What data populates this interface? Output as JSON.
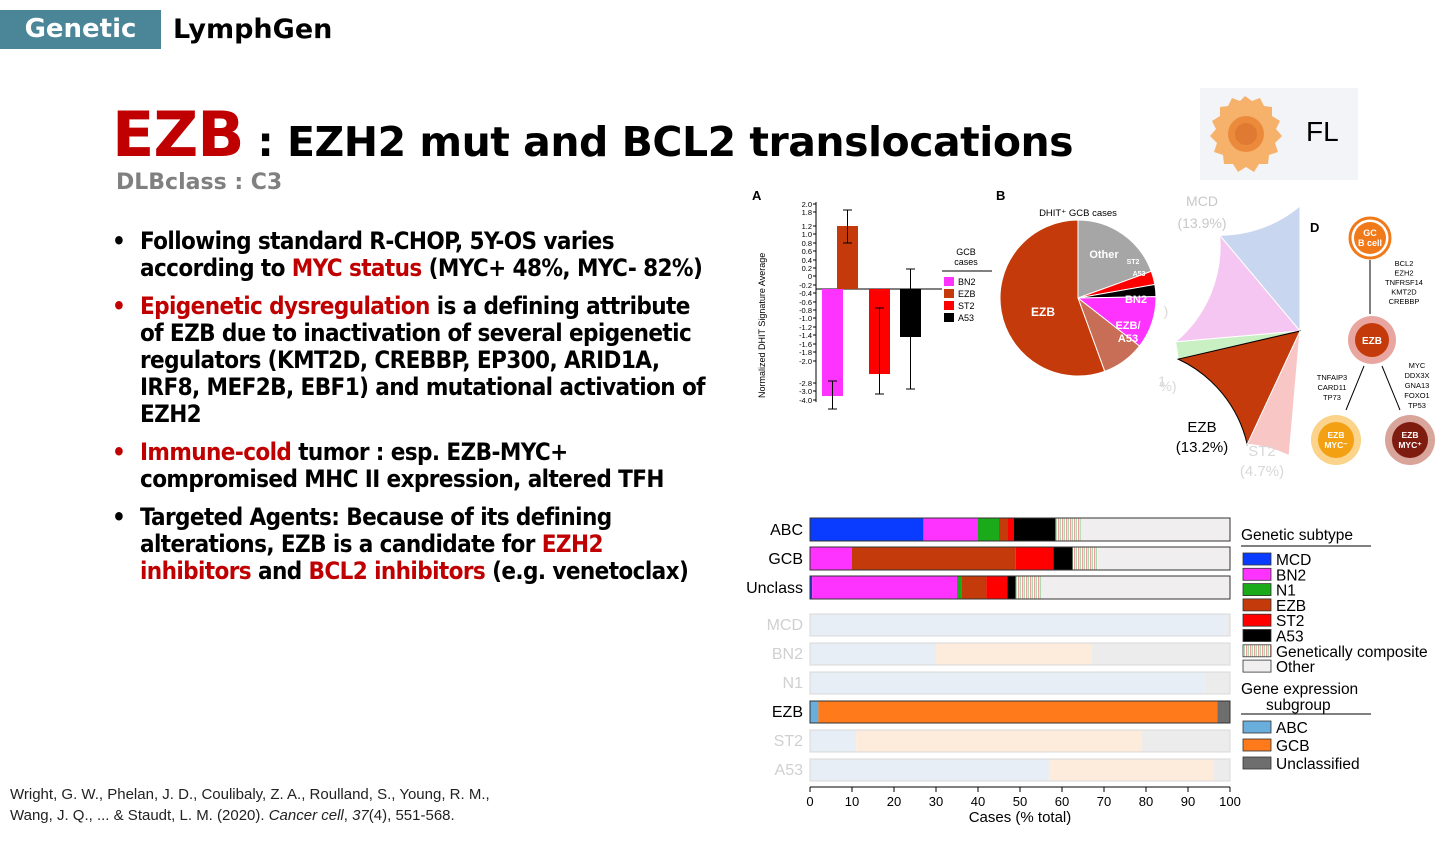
{
  "header": {
    "tag": "Genetic",
    "name": "LymphGen"
  },
  "title": {
    "main": "EZB",
    "rest": " : EZH2 mut and BCL2 translocations",
    "subtitle": "DLBclass : C3"
  },
  "bullets": [
    {
      "parts": [
        {
          "t": "Following standard R-CHOP, 5Y-OS varies according to "
        },
        {
          "t": "MYC status",
          "red": true
        },
        {
          "t": " (MYC+ 48%, MYC- 82%)"
        }
      ]
    },
    {
      "parts": [
        {
          "t": "Epigenetic dysregulation",
          "red": true
        },
        {
          "t": " is a defining attribute of EZB due to inactivation of several epigenetic regulators (KMT2D, CREBBP, EP300, ARID1A, IRF8, MEF2B, EBF1) and mutational activation of EZH2"
        }
      ]
    },
    {
      "parts": [
        {
          "t": "Immune-cold",
          "red": true
        },
        {
          "t": " tumor : esp. EZB-MYC+ compromised MHC II expression, altered TFH"
        }
      ]
    },
    {
      "parts": [
        {
          "t": "Targeted Agents: Because of its defining alterations, EZB is a candidate for "
        },
        {
          "t": "EZH2 inhibitors",
          "red": true
        },
        {
          "t": " and "
        },
        {
          "t": "BCL2 inhibitors",
          "red": true
        },
        {
          "t": " (e.g. venetoclax)"
        }
      ]
    }
  ],
  "citation": {
    "line1": "Wright, G. W., Phelan, J. D., Coulibaly, Z. A., Roulland, S., Young, R. M.,",
    "line2a": "Wang, J. Q., ... & Staudt, L. M. (2020). ",
    "journal": "Cancer cell",
    "line2b": ", ",
    "vol": "37",
    "line2c": "(4), 551-568."
  },
  "fl_label": "FL",
  "colors": {
    "MCD": "#0a3cff",
    "BN2": "#ff33ff",
    "N1": "#1aaa1a",
    "EZB": "#c43a0a",
    "ST2": "#ff0000",
    "A53": "#000000",
    "Other": "#f0eeee",
    "ABC": "#6aaedc",
    "GCB": "#ff7a1a",
    "Unclassified": "#6e6e6e",
    "accent": "#c00000",
    "tag": "#4a8598"
  },
  "panel_a": {
    "label": "A",
    "ylabel": "Normalized DHIT Signature Average",
    "yticks": [
      "2.0",
      "1.8",
      "1.2",
      "1.0",
      "0.8",
      "0.6",
      "0.4",
      "0.2",
      "0",
      "-0.2",
      "-0.4",
      "-0.6",
      "-0.8",
      "-1.0",
      "-1.2",
      "-1.4",
      "-1.6",
      "-1.8",
      "-2.0",
      "-2.8",
      "-3.0",
      "-4.0"
    ],
    "legend_title": "GCB\ncases",
    "legend": [
      "BN2",
      "EZB",
      "ST2",
      "A53"
    ]
  },
  "panel_b": {
    "label": "B",
    "title": "DHIT⁺ GCB cases",
    "slices": [
      "Other",
      "ST2",
      "A53",
      "BN2",
      "EZB/\nA53",
      "EZB"
    ]
  },
  "panel_c": {
    "labels": [
      {
        "t": "MCD"
      },
      {
        "t": "(13.9%)"
      },
      {
        "t": "EZB"
      },
      {
        "t": "(13.2%)"
      },
      {
        "t": "ST2"
      },
      {
        "t": "(4.7%)"
      },
      {
        "t": ")"
      },
      {
        "t": "1"
      },
      {
        "t": "%)"
      }
    ]
  },
  "panel_d": {
    "label": "D",
    "gc": "GC\nB cell",
    "genes1": [
      "BCL2",
      "EZH2",
      "TNFRSF14",
      "KMT2D",
      "CREBBP"
    ],
    "ezb": "EZB",
    "genes_left": [
      "TNFAIP3",
      "CARD11",
      "TP73"
    ],
    "genes_right": [
      "MYC",
      "DDX3X",
      "GNA13",
      "FOXO1",
      "TP53"
    ],
    "myc_neg": "EZB\nMYC⁻",
    "myc_pos": "EZB\nMYC⁺"
  },
  "chart_data": [
    {
      "type": "bar",
      "title": "",
      "stacked": true,
      "orientation": "horizontal",
      "xlabel": "Cases (% total)",
      "xlim": [
        0,
        100
      ],
      "xticks": [
        "0",
        "10",
        "20",
        "30",
        "40",
        "50",
        "60",
        "70",
        "80",
        "90",
        "100"
      ],
      "categories": [
        "ABC",
        "GCB",
        "Unclass"
      ],
      "series": [
        {
          "name": "MCD",
          "values": [
            27,
            0,
            0.5
          ]
        },
        {
          "name": "BN2",
          "values": [
            13,
            10,
            34.5
          ]
        },
        {
          "name": "N1",
          "values": [
            5,
            0,
            1
          ]
        },
        {
          "name": "EZB",
          "values": [
            2,
            39,
            6
          ]
        },
        {
          "name": "ST2",
          "values": [
            1.5,
            9,
            5
          ]
        },
        {
          "name": "A53",
          "values": [
            10,
            4.5,
            2
          ]
        },
        {
          "name": "Genetically composite",
          "values": [
            6,
            6,
            6
          ]
        },
        {
          "name": "Other",
          "values": [
            35.5,
            31.5,
            45
          ]
        }
      ],
      "legend_title": "Genetic subtype",
      "legend_position": "right"
    },
    {
      "type": "bar",
      "title": "",
      "stacked": true,
      "orientation": "horizontal",
      "categories": [
        "MCD",
        "BN2",
        "N1",
        "EZB",
        "ST2",
        "A53"
      ],
      "series": [
        {
          "name": "ABC",
          "values": [
            99,
            30,
            94,
            2,
            11,
            57
          ]
        },
        {
          "name": "GCB",
          "values": [
            0,
            37,
            0,
            95,
            68,
            39
          ]
        },
        {
          "name": "Unclassified",
          "values": [
            1,
            33,
            6,
            3,
            21,
            4
          ]
        }
      ],
      "legend_title": "Gene expression\nsubgroup",
      "legend_position": "right"
    }
  ]
}
